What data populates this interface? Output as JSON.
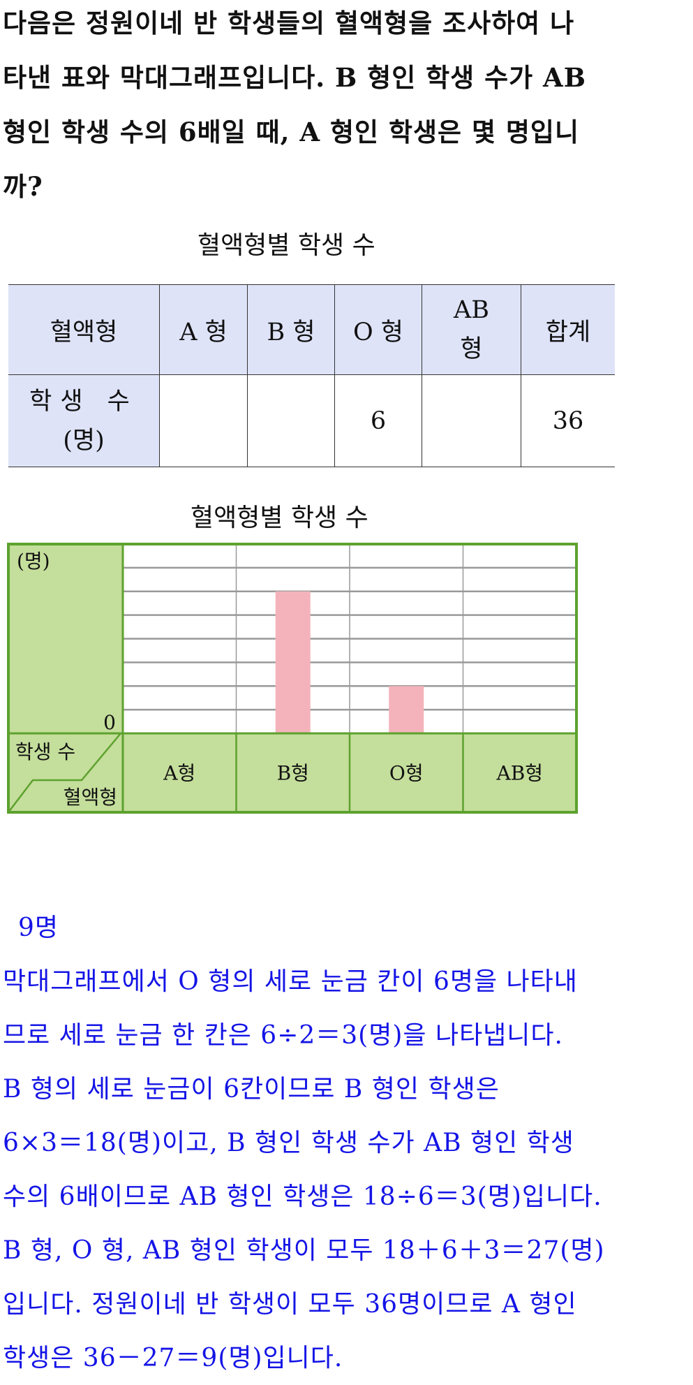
{
  "question": {
    "lines": [
      "다음은 정원이네 반 학생들의 혈액형을 조사하여 나",
      "타낸 표와 막대그래프입니다. B 형인 학생 수가 AB",
      "형인 학생 수의 6배일 때, A 형인 학생은 몇 명입니",
      "까?"
    ]
  },
  "table": {
    "title": "혈액형별 학생 수",
    "headers": [
      "혈액형",
      "A 형",
      "B 형",
      "O 형",
      "AB 형",
      "합계"
    ],
    "row_label_1": "학생 수",
    "row_label_2": "(명)",
    "values": [
      "",
      "",
      "6",
      "",
      "36"
    ]
  },
  "chart_data": {
    "type": "bar",
    "title": "혈액형별 학생 수",
    "ylabel": "(명)",
    "y_tick_labels": [
      "0"
    ],
    "corner_top": "학생 수",
    "corner_bottom": "혈액형",
    "categories": [
      "A형",
      "B형",
      "O형",
      "AB형"
    ],
    "values": [
      null,
      18,
      6,
      null
    ],
    "ylim": [
      0,
      24
    ],
    "grid_rows": 8,
    "grid": true,
    "colors": {
      "bar": "#f4b3bb",
      "panel": "#c4de9b",
      "border": "#5da22e",
      "grid": "#999999"
    }
  },
  "answer": {
    "value": "9명",
    "lines": [
      "막대그래프에서 O 형의 세로 눈금 칸이 6명을 나타내",
      "므로 세로 눈금 한 칸은 6÷2＝3(명)을 나타냅니다.",
      "B 형의 세로 눈금이 6칸이므로 B 형인 학생은",
      "6×3＝18(명)이고, B 형인 학생 수가 AB 형인 학생",
      "수의 6배이므로 AB 형인 학생은 18÷6＝3(명)입니다.",
      "B 형, O 형, AB 형인 학생이 모두 18＋6＋3＝27(명)",
      "입니다. 정원이네 반 학생이 모두 36명이므로 A 형인",
      "학생은 36－27＝9(명)입니다."
    ],
    "color": "#1414e6"
  }
}
